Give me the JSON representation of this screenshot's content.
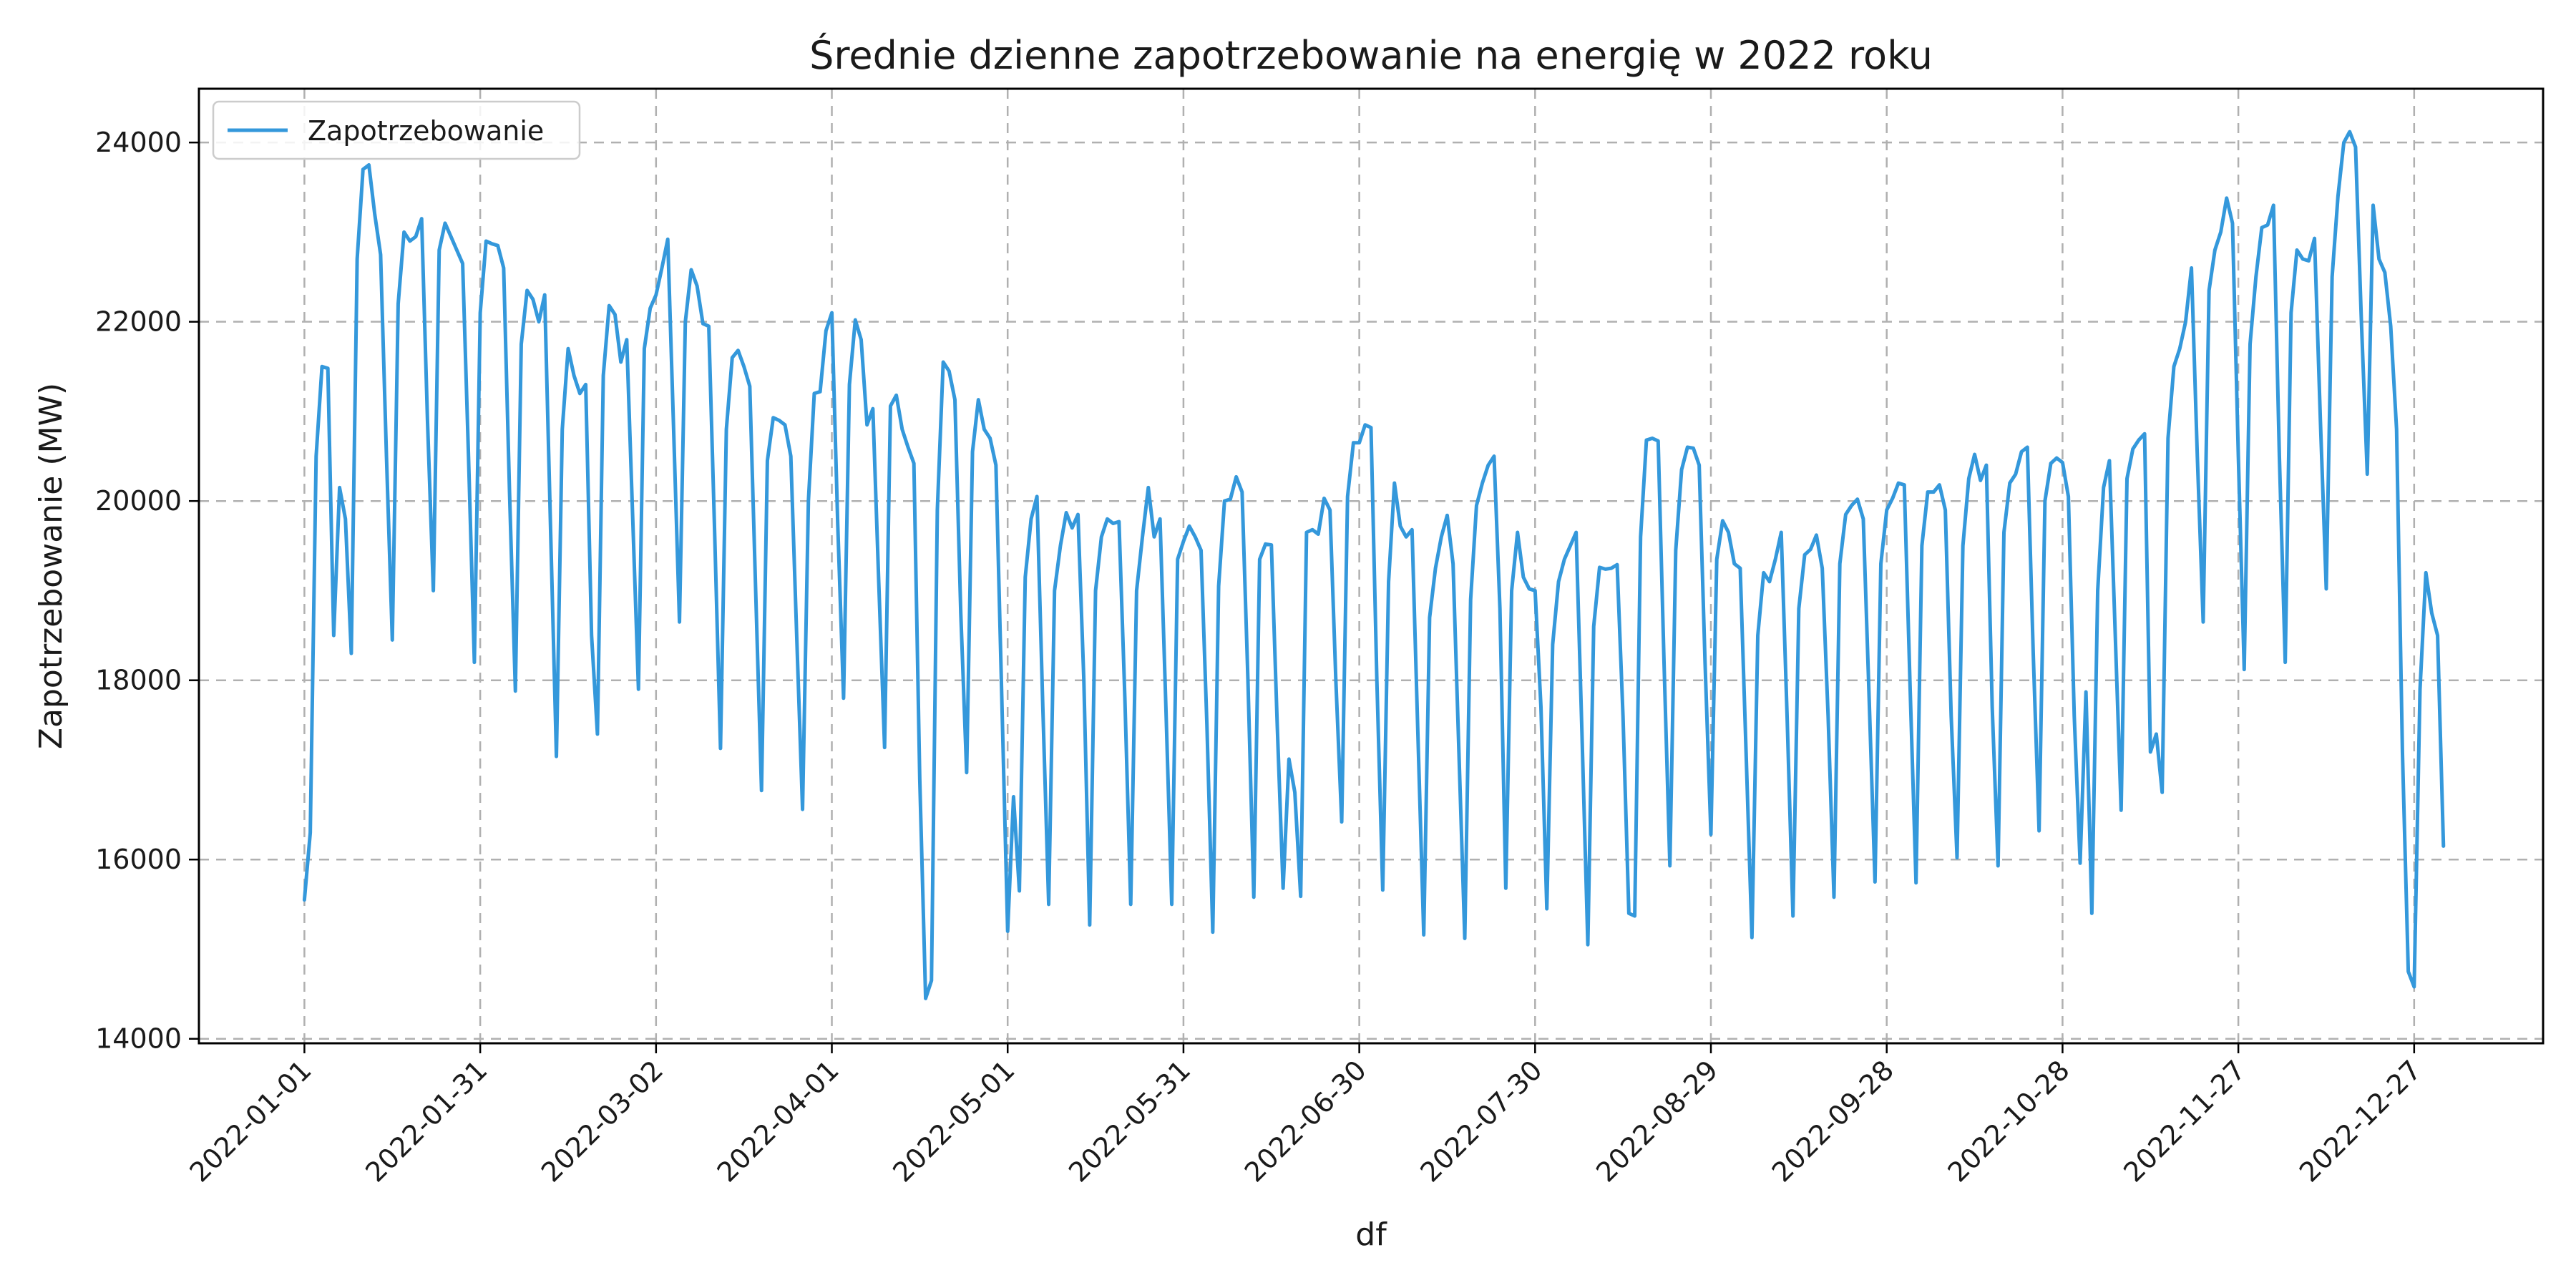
{
  "chart_data": {
    "type": "line",
    "title": "Średnie dzienne zapotrzebowanie na energię w 2022 roku",
    "xlabel": "df",
    "ylabel": "Zapotrzebowanie (MW)",
    "xlim": [
      "2021-12-14",
      "2023-01-18"
    ],
    "ylim": [
      13950,
      24600
    ],
    "x_ticks": [
      "2022-01-01",
      "2022-01-31",
      "2022-03-02",
      "2022-04-01",
      "2022-05-01",
      "2022-05-31",
      "2022-06-30",
      "2022-07-30",
      "2022-08-29",
      "2022-09-28",
      "2022-10-28",
      "2022-11-27",
      "2022-12-27"
    ],
    "y_ticks": [
      14000,
      16000,
      18000,
      20000,
      22000,
      24000
    ],
    "grid": true,
    "legend_position": "top-left",
    "series": [
      {
        "name": "Zapotrzebowanie",
        "color": "#3498db",
        "x_start": "2022-01-01",
        "x_step_days": 1,
        "values": [
          15550,
          16300,
          20500,
          21500,
          21480,
          18500,
          20150,
          19800,
          18300,
          22700,
          23700,
          23750,
          23200,
          22750,
          20500,
          18450,
          22200,
          23000,
          22900,
          22950,
          23150,
          20900,
          19000,
          22800,
          23100,
          22950,
          22800,
          22650,
          20500,
          18200,
          22100,
          22900,
          22870,
          22850,
          22600,
          20100,
          17880,
          21750,
          22350,
          22250,
          22000,
          22300,
          19700,
          17150,
          20800,
          21700,
          21400,
          21200,
          21300,
          18500,
          17400,
          21400,
          22180,
          22080,
          21550,
          21800,
          19850,
          17900,
          21700,
          22150,
          22300,
          22600,
          22920,
          20800,
          18650,
          22000,
          22580,
          22400,
          21980,
          21950,
          19650,
          17240,
          20800,
          21600,
          21680,
          21500,
          21280,
          19000,
          16770,
          20450,
          20930,
          20900,
          20850,
          20500,
          18500,
          16560,
          20000,
          21200,
          21220,
          21900,
          22100,
          19750,
          17800,
          21300,
          22020,
          21800,
          20850,
          21030,
          19100,
          17250,
          21060,
          21180,
          20800,
          20600,
          20420,
          16900,
          14450,
          14650,
          19900,
          21550,
          21450,
          21130,
          18750,
          16970,
          20550,
          21130,
          20800,
          20700,
          20400,
          17800,
          15200,
          16700,
          15650,
          19150,
          19800,
          20050,
          17700,
          15500,
          19000,
          19500,
          19870,
          19700,
          19850,
          18000,
          15270,
          19000,
          19600,
          19800,
          19750,
          19770,
          17800,
          15500,
          19000,
          19600,
          20150,
          19600,
          19800,
          17700,
          15500,
          19350,
          19550,
          19720,
          19600,
          19450,
          17500,
          15190,
          19050,
          20000,
          20020,
          20270,
          20100,
          18000,
          15580,
          19350,
          19520,
          19510,
          17500,
          15680,
          17120,
          16750,
          15590,
          19650,
          19680,
          19630,
          20030,
          19900,
          18000,
          16420,
          20050,
          20650,
          20650,
          20850,
          20820,
          18000,
          15660,
          19100,
          20200,
          19720,
          19600,
          19680,
          17400,
          15160,
          18700,
          19250,
          19600,
          19840,
          19300,
          17200,
          15120,
          18900,
          19950,
          20200,
          20400,
          20500,
          18800,
          15680,
          19000,
          19650,
          19150,
          19020,
          19000,
          17700,
          15450,
          18400,
          19100,
          19350,
          19500,
          19650,
          17400,
          15050,
          18600,
          19260,
          19240,
          19250,
          19290,
          17600,
          15400,
          15370,
          19600,
          20680,
          20700,
          20670,
          18200,
          15930,
          19450,
          20350,
          20600,
          20590,
          20400,
          18200,
          16280,
          19350,
          19780,
          19650,
          19300,
          19250,
          17200,
          15130,
          18500,
          19200,
          19100,
          19350,
          19650,
          17600,
          15370,
          18800,
          19400,
          19460,
          19620,
          19250,
          17600,
          15580,
          19300,
          19850,
          19950,
          20020,
          19800,
          17800,
          15750,
          19300,
          19900,
          20030,
          20200,
          20180,
          17900,
          15740,
          19500,
          20100,
          20100,
          20180,
          19900,
          17600,
          16020,
          19500,
          20250,
          20520,
          20230,
          20400,
          17700,
          15930,
          19650,
          20200,
          20300,
          20550,
          20600,
          18300,
          16320,
          20000,
          20420,
          20480,
          20430,
          20050,
          17600,
          15960,
          17870,
          15400,
          19000,
          20150,
          20450,
          18500,
          16550,
          20250,
          20580,
          20680,
          20750,
          17200,
          17400,
          16750,
          20700,
          21500,
          21700,
          22000,
          22600,
          20500,
          18650,
          22350,
          22800,
          23000,
          23380,
          23100,
          20500,
          18120,
          21750,
          22500,
          23050,
          23080,
          23300,
          20500,
          18200,
          22100,
          22800,
          22700,
          22680,
          22930,
          20900,
          19020,
          22500,
          23400,
          24000,
          24120,
          23950,
          22000,
          20300,
          23300,
          22700,
          22550,
          21950,
          20800,
          17200,
          14750,
          14580,
          17900,
          19200,
          18750,
          18500,
          16150
        ]
      }
    ]
  }
}
